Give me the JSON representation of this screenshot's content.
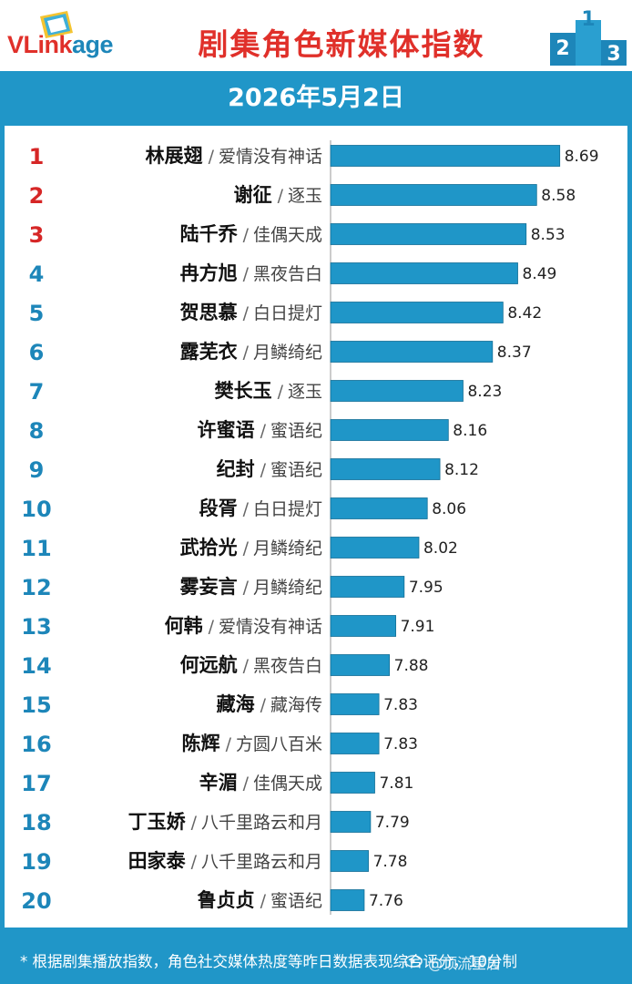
{
  "header": {
    "logo_prefix": "VLink",
    "logo_suffix": "age",
    "title": "剧集角色新媒体指数"
  },
  "date": "2026年5月2日",
  "colors": {
    "accent": "#2096c8",
    "bar": "#1f96c8",
    "bar_edge": "#136f96",
    "title_red": "#e0302a",
    "rank_top3": "#d62626",
    "rank_other": "#1d86b9"
  },
  "chart_data": {
    "type": "bar",
    "orientation": "horizontal",
    "title": "剧集角色新媒体指数",
    "xlim": [
      7.6,
      8.7
    ],
    "rows": [
      {
        "rank": "1",
        "name": "林展翅",
        "drama": "爱情没有神话",
        "value": 8.69
      },
      {
        "rank": "2",
        "name": "谢征",
        "drama": "逐玉",
        "value": 8.58
      },
      {
        "rank": "3",
        "name": "陆千乔",
        "drama": "佳偶天成",
        "value": 8.53
      },
      {
        "rank": "4",
        "name": "冉方旭",
        "drama": "黑夜告白",
        "value": 8.49
      },
      {
        "rank": "5",
        "name": "贺思慕",
        "drama": "白日提灯",
        "value": 8.42
      },
      {
        "rank": "6",
        "name": "露芜衣",
        "drama": "月鳞绮纪",
        "value": 8.37
      },
      {
        "rank": "7",
        "name": "樊长玉",
        "drama": "逐玉",
        "value": 8.23
      },
      {
        "rank": "8",
        "name": "许蜜语",
        "drama": "蜜语纪",
        "value": 8.16
      },
      {
        "rank": "9",
        "name": "纪封",
        "drama": "蜜语纪",
        "value": 8.12
      },
      {
        "rank": "10",
        "name": "段胥",
        "drama": "白日提灯",
        "value": 8.06
      },
      {
        "rank": "11",
        "name": "武拾光",
        "drama": "月鳞绮纪",
        "value": 8.02
      },
      {
        "rank": "12",
        "name": "雾妄言",
        "drama": "月鳞绮纪",
        "value": 7.95
      },
      {
        "rank": "13",
        "name": "何韩",
        "drama": "爱情没有神话",
        "value": 7.91
      },
      {
        "rank": "14",
        "name": "何远航",
        "drama": "黑夜告白",
        "value": 7.88
      },
      {
        "rank": "15",
        "name": "藏海",
        "drama": "藏海传",
        "value": 7.83
      },
      {
        "rank": "16",
        "name": "陈辉",
        "drama": "方圆八百米",
        "value": 7.83
      },
      {
        "rank": "17",
        "name": "辛湄",
        "drama": "佳偶天成",
        "value": 7.81
      },
      {
        "rank": "18",
        "name": "丁玉娇",
        "drama": "八千里路云和月",
        "value": 7.79
      },
      {
        "rank": "19",
        "name": "田家泰",
        "drama": "八千里路云和月",
        "value": 7.78
      },
      {
        "rank": "20",
        "name": "鲁贞贞",
        "drama": "蜜语纪",
        "value": 7.76
      }
    ]
  },
  "footer": {
    "note": "* 根据剧集播放指数，角色社交媒体热度等昨日数据表现综合评分，10分制",
    "watermark": "@顶流星居"
  }
}
